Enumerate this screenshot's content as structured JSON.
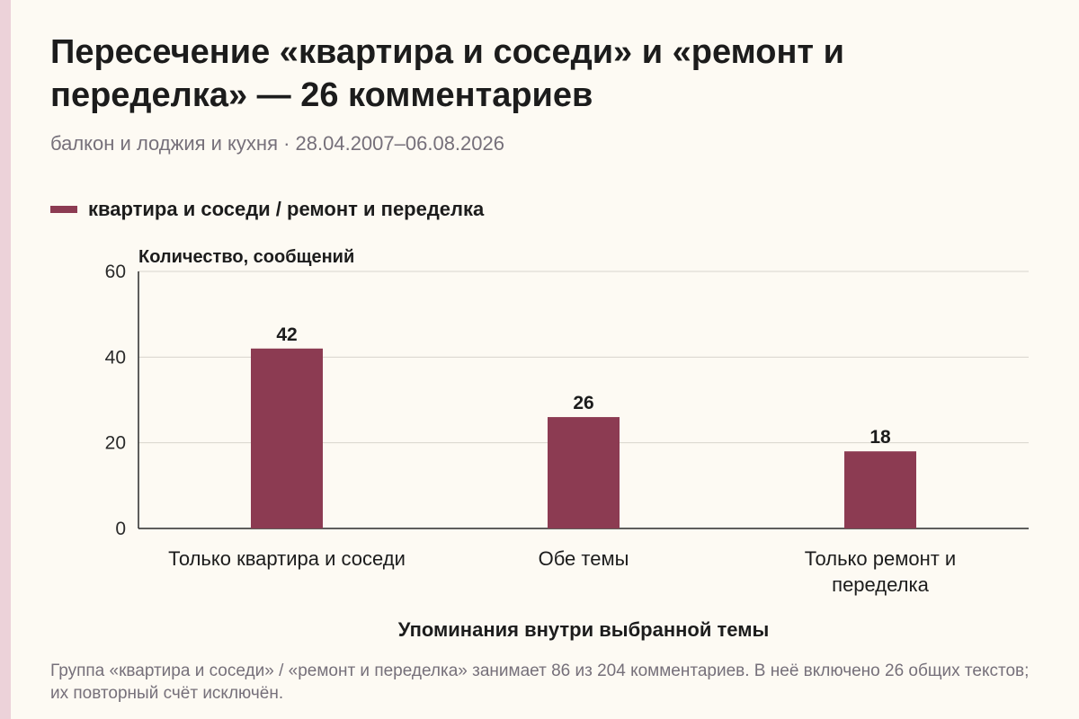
{
  "title": "Пересечение «квартира и соседи» и «ремонт и переделка» — 26 комментариев",
  "subtitle": "балкон и лоджия и кухня · 28.04.2007–06.08.2026",
  "legend": {
    "label": "квартира и соседи / ремонт и переделка"
  },
  "colors": {
    "bar": "#8c3b52",
    "grid": "#d8d4cc",
    "axis": "#2a2a2a"
  },
  "chart_data": {
    "type": "bar",
    "categories": [
      "Только квартира и соседи",
      "Обе темы",
      "Только ремонт и переделка"
    ],
    "series": [
      {
        "name": "квартира и соседи / ремонт и переделка",
        "values": [
          42,
          26,
          18
        ]
      }
    ],
    "value_labels": [
      "42",
      "26",
      "18"
    ],
    "ylabel": "Количество, сообщений",
    "xlabel": "Упоминания внутри выбранной темы",
    "ylim": [
      0,
      60
    ],
    "yticks": [
      0,
      20,
      40,
      60
    ],
    "grid": true,
    "legend_position": "top-left"
  },
  "footnote": "Группа «квартира и соседи» / «ремонт и переделка» занимает 86 из 204 комментариев. В неё включено 26 общих текстов; их повторный счёт исключён."
}
